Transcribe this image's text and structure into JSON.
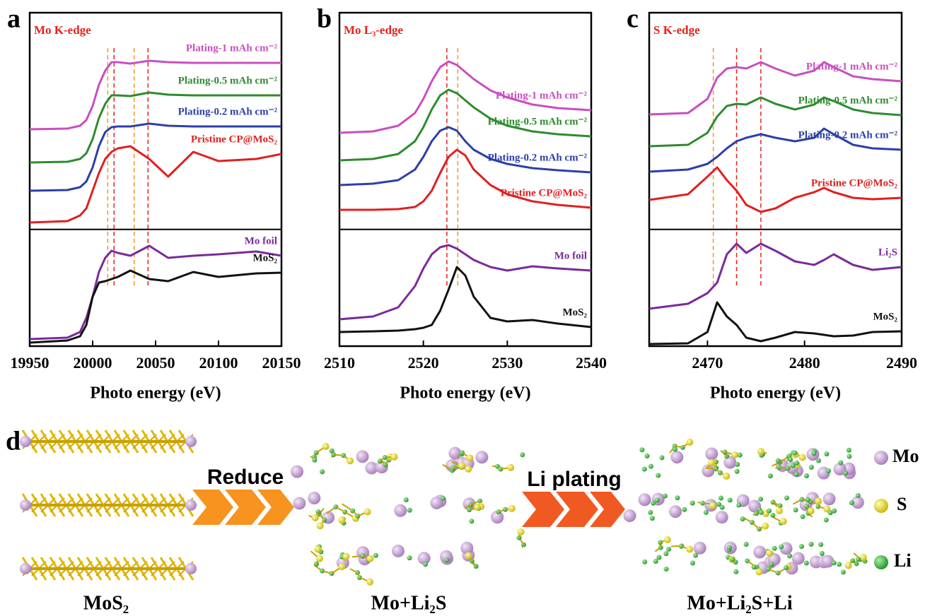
{
  "chart_data": [
    {
      "type": "line",
      "panel": "a",
      "title": "Mo K-edge",
      "title_color": "#e8201c",
      "xlabel": "Photo energy (eV)",
      "x": [
        19950,
        19980,
        19990,
        19995,
        20000,
        20005,
        20010,
        20015,
        20020,
        20030,
        20045,
        20060,
        20080,
        20100,
        20130,
        20150
      ],
      "xlim": [
        19950,
        20150
      ],
      "xticks": [
        19950,
        20000,
        20050,
        20100,
        20150
      ],
      "ylim": [
        0,
        472
      ],
      "series": [
        {
          "name": "Plating-1 mAh cm⁻²",
          "color": "#c84fbf",
          "values": [
            307,
            308,
            312,
            320,
            340,
            370,
            390,
            402,
            402,
            400,
            404,
            402,
            401,
            401,
            401,
            401
          ]
        },
        {
          "name": "Plating-0.5 mAh cm⁻²",
          "color": "#2e8b2e",
          "values": [
            260,
            261,
            265,
            273,
            293,
            323,
            343,
            355,
            355,
            354,
            359,
            356,
            355,
            355,
            355,
            355
          ]
        },
        {
          "name": "Plating-0.2 mAh cm⁻²",
          "color": "#2d3fa8",
          "values": [
            220,
            221,
            225,
            233,
            253,
            283,
            303,
            310,
            311,
            311,
            315,
            312,
            311,
            311,
            311,
            311
          ]
        },
        {
          "name": "Pristine CP@MoS₂",
          "color": "#e02020",
          "values": [
            175,
            177,
            185,
            195,
            220,
            245,
            265,
            275,
            280,
            283,
            265,
            240,
            275,
            262,
            265,
            272
          ]
        },
        {
          "name": "Mo foil",
          "color": "#7a2a9a",
          "values": [
            10,
            12,
            20,
            40,
            70,
            105,
            125,
            135,
            132,
            128,
            142,
            125,
            128,
            130,
            134,
            128
          ]
        },
        {
          "name": "MoS₂",
          "color": "#111111",
          "values": [
            5,
            8,
            14,
            30,
            70,
            90,
            92,
            95,
            98,
            107,
            95,
            92,
            105,
            98,
            103,
            104
          ]
        }
      ],
      "vlines": [
        {
          "x": 20017,
          "color": "#e8201c"
        },
        {
          "x": 20044,
          "color": "#e8201c"
        },
        {
          "x": 20012,
          "color": "#f0962a"
        },
        {
          "x": 20033,
          "color": "#f0962a"
        }
      ]
    },
    {
      "type": "line",
      "panel": "b",
      "title": "Mo L₃-edge",
      "title_color": "#e8201c",
      "xlabel": "Photo energy (eV)",
      "x": [
        2510,
        2514,
        2517,
        2519,
        2520,
        2521,
        2522,
        2523,
        2524,
        2525,
        2526,
        2528,
        2530,
        2533,
        2536,
        2540
      ],
      "xlim": [
        2510,
        2540
      ],
      "xticks": [
        2510,
        2520,
        2530,
        2540
      ],
      "ylim": [
        0,
        472
      ],
      "series": [
        {
          "name": "Plating-1 mAh cm⁻²",
          "color": "#c84fbf",
          "values": [
            302,
            304,
            312,
            330,
            350,
            375,
            395,
            403,
            398,
            388,
            378,
            362,
            352,
            342,
            337,
            334
          ]
        },
        {
          "name": "Plating-0.5 mAh cm⁻²",
          "color": "#2e8b2e",
          "values": [
            263,
            265,
            272,
            290,
            310,
            335,
            355,
            363,
            358,
            348,
            338,
            322,
            312,
            304,
            300,
            297
          ]
        },
        {
          "name": "Plating-0.2 mAh cm⁻²",
          "color": "#2d3fa8",
          "values": [
            228,
            230,
            235,
            250,
            268,
            290,
            305,
            310,
            305,
            290,
            278,
            265,
            258,
            252,
            249,
            246
          ]
        },
        {
          "name": "Pristine CP@MoS₂",
          "color": "#e02020",
          "values": [
            193,
            193,
            194,
            197,
            205,
            220,
            245,
            268,
            278,
            270,
            250,
            228,
            215,
            205,
            200,
            196
          ]
        },
        {
          "name": "Mo foil",
          "color": "#7a2a9a",
          "values": [
            38,
            42,
            55,
            85,
            110,
            130,
            140,
            143,
            138,
            130,
            122,
            112,
            107,
            113,
            110,
            107
          ]
        },
        {
          "name": "MoS₂",
          "color": "#111111",
          "values": [
            20,
            21,
            22,
            24,
            26,
            30,
            50,
            80,
            112,
            100,
            70,
            40,
            35,
            37,
            32,
            27
          ]
        }
      ],
      "vlines": [
        {
          "x": 2522.8,
          "color": "#e8201c"
        },
        {
          "x": 2524.1,
          "color": "#f0962a"
        }
      ]
    },
    {
      "type": "line",
      "panel": "c",
      "title": "S K-edge",
      "title_color": "#e8201c",
      "xlabel": "Photo energy (eV)",
      "x": [
        2464,
        2468,
        2470,
        2471,
        2472,
        2473,
        2474,
        2475.5,
        2477,
        2479,
        2481,
        2482,
        2483,
        2485,
        2487,
        2490
      ],
      "xlim": [
        2464,
        2490
      ],
      "xticks": [
        2470,
        2480,
        2490
      ],
      "ylim": [
        0,
        472
      ],
      "series": [
        {
          "name": "Plating-1 mAh cm⁻²",
          "color": "#c84fbf",
          "values": [
            328,
            330,
            350,
            380,
            393,
            395,
            393,
            402,
            393,
            383,
            390,
            402,
            395,
            382,
            378,
            375
          ]
        },
        {
          "name": "Plating-0.5 mAh cm⁻²",
          "color": "#2e8b2e",
          "values": [
            283,
            285,
            302,
            325,
            340,
            343,
            342,
            352,
            343,
            335,
            342,
            352,
            347,
            335,
            330,
            327
          ]
        },
        {
          "name": "Plating-0.2 mAh cm⁻²",
          "color": "#2d3fa8",
          "values": [
            247,
            250,
            258,
            268,
            280,
            290,
            295,
            300,
            295,
            290,
            295,
            308,
            300,
            285,
            280,
            278
          ]
        },
        {
          "name": "Pristine CP@MoS₂",
          "color": "#e02020",
          "values": [
            207,
            215,
            240,
            253,
            235,
            220,
            200,
            190,
            195,
            210,
            218,
            224,
            218,
            210,
            208,
            210
          ]
        },
        {
          "name": "Li₂S",
          "color": "#7a2a9a",
          "values": [
            53,
            60,
            75,
            90,
            130,
            145,
            132,
            145,
            135,
            120,
            115,
            122,
            130,
            115,
            108,
            112
          ]
        },
        {
          "name": "MoS₂",
          "color": "#111111",
          "values": [
            3,
            4,
            20,
            62,
            42,
            30,
            12,
            7,
            12,
            20,
            18,
            16,
            14,
            15,
            20,
            21
          ]
        }
      ],
      "vlines": [
        {
          "x": 2473,
          "color": "#e8201c"
        },
        {
          "x": 2475.5,
          "color": "#e8201c"
        },
        {
          "x": 2470.6,
          "color": "#f0962a"
        }
      ]
    }
  ],
  "diagram": {
    "panel": "d",
    "stages": [
      "MoS₂",
      "Mo+Li₂S",
      "Mo+Li₂S+Li"
    ],
    "steps": [
      "Reduce",
      "Li plating"
    ],
    "legend": [
      "Mo",
      "S",
      "Li"
    ]
  }
}
